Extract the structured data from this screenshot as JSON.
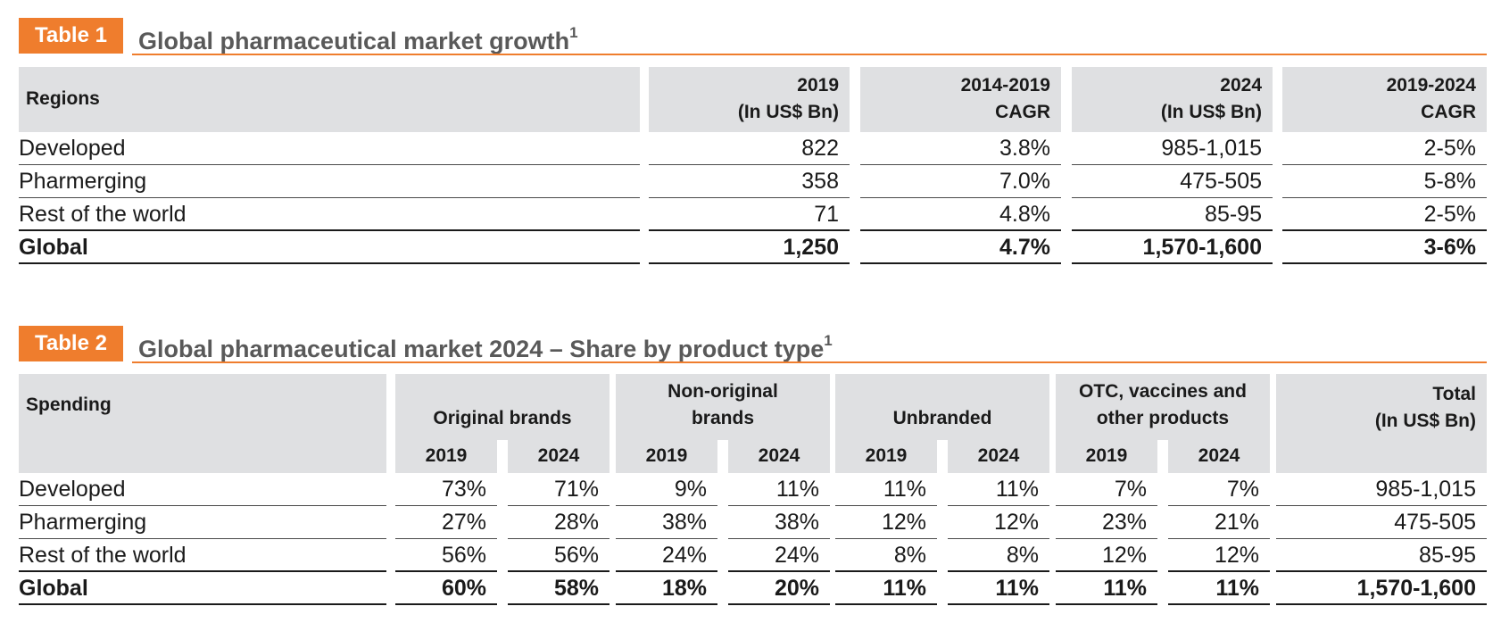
{
  "table1": {
    "tag": "Table 1",
    "title": "Global pharmaceutical market growth",
    "footnote": "1",
    "headers": [
      "Regions",
      "2019",
      "(In US$ Bn)",
      "2014-2019",
      "CAGR",
      "2024",
      "(In US$ Bn)",
      "2019-2024",
      "CAGR"
    ],
    "rows": [
      {
        "region": "Developed",
        "v2019": "822",
        "cagr1": "3.8%",
        "v2024": "985-1,015",
        "cagr2": "2-5%"
      },
      {
        "region": "Pharmerging",
        "v2019": "358",
        "cagr1": "7.0%",
        "v2024": "475-505",
        "cagr2": "5-8%"
      },
      {
        "region": "Rest of the world",
        "v2019": "71",
        "cagr1": "4.8%",
        "v2024": "85-95",
        "cagr2": "2-5%"
      },
      {
        "region": "Global",
        "v2019": "1,250",
        "cagr1": "4.7%",
        "v2024": "1,570-1,600",
        "cagr2": "3-6%"
      }
    ]
  },
  "table2": {
    "tag": "Table 2",
    "title": "Global pharmaceutical market 2024 – Share by product type",
    "footnote": "1",
    "spending_label": "Spending",
    "groups": [
      {
        "line1": "",
        "line2": "Original brands"
      },
      {
        "line1": "Non-original",
        "line2": "brands"
      },
      {
        "line1": "",
        "line2": "Unbranded"
      },
      {
        "line1": "OTC, vaccines and",
        "line2": "other products"
      }
    ],
    "total_label": [
      "Total",
      "(In US$ Bn)"
    ],
    "years": [
      "2019",
      "2024"
    ],
    "rows": [
      {
        "region": "Developed",
        "values": [
          "73%",
          "71%",
          "9%",
          "11%",
          "11%",
          "11%",
          "7%",
          "7%"
        ],
        "total": "985-1,015"
      },
      {
        "region": "Pharmerging",
        "values": [
          "27%",
          "28%",
          "38%",
          "38%",
          "12%",
          "12%",
          "23%",
          "21%"
        ],
        "total": "475-505"
      },
      {
        "region": "Rest of the world",
        "values": [
          "56%",
          "56%",
          "24%",
          "24%",
          "8%",
          "8%",
          "12%",
          "12%"
        ],
        "total": "85-95"
      },
      {
        "region": "Global",
        "values": [
          "60%",
          "58%",
          "18%",
          "20%",
          "11%",
          "11%",
          "11%",
          "11%"
        ],
        "total": "1,570-1,600"
      }
    ]
  }
}
